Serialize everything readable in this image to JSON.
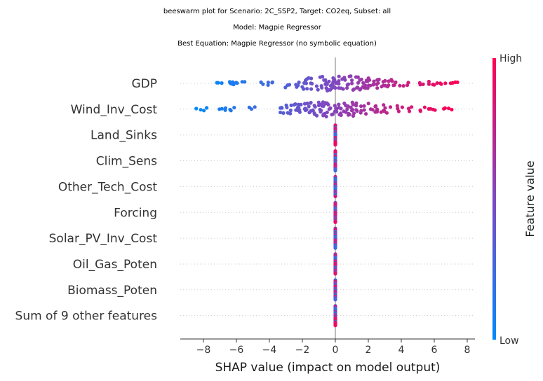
{
  "chart_data": {
    "type": "scatter",
    "subtype": "beeswarm",
    "title_lines": [
      "beeswarm plot for Scenario: 2C_SSP2, Target: CO2eq, Subset: all",
      "Model: Magpie Regressor",
      "Best Equation: Magpie Regressor (no symbolic equation)"
    ],
    "xlabel": "SHAP value (impact on model output)",
    "xlim": [
      -9.2,
      8.4
    ],
    "xticks": [
      -8,
      -6,
      -4,
      -2,
      0,
      2,
      4,
      6,
      8
    ],
    "xtick_labels": [
      "−8",
      "−6",
      "−4",
      "−2",
      "0",
      "2",
      "4",
      "6",
      "8"
    ],
    "features": [
      "GDP",
      "Wind_Inv_Cost",
      "Land_Sinks",
      "Clim_Sens",
      "Other_Tech_Cost",
      "Forcing",
      "Solar_PV_Inv_Cost",
      "Oil_Gas_Poten",
      "Biomass_Poten",
      "Sum of 9 other features"
    ],
    "feature_ranges": [
      {
        "min": -7.9,
        "max": 7.6
      },
      {
        "min": -8.5,
        "max": 7.1
      },
      {
        "min": 0,
        "max": 0
      },
      {
        "min": 0,
        "max": 0
      },
      {
        "min": 0,
        "max": 0
      },
      {
        "min": 0,
        "max": 0
      },
      {
        "min": 0,
        "max": 0
      },
      {
        "min": 0,
        "max": 0
      },
      {
        "min": 0,
        "max": 0
      },
      {
        "min": 0,
        "max": 0
      }
    ],
    "colorbar": {
      "label": "Feature value",
      "high_label": "High",
      "low_label": "Low",
      "low_color": "#008afb",
      "mid_color": "#7e49c2",
      "high_color": "#ff0052"
    },
    "grid": "dotted-horizontal",
    "legend": "colorbar-right"
  }
}
